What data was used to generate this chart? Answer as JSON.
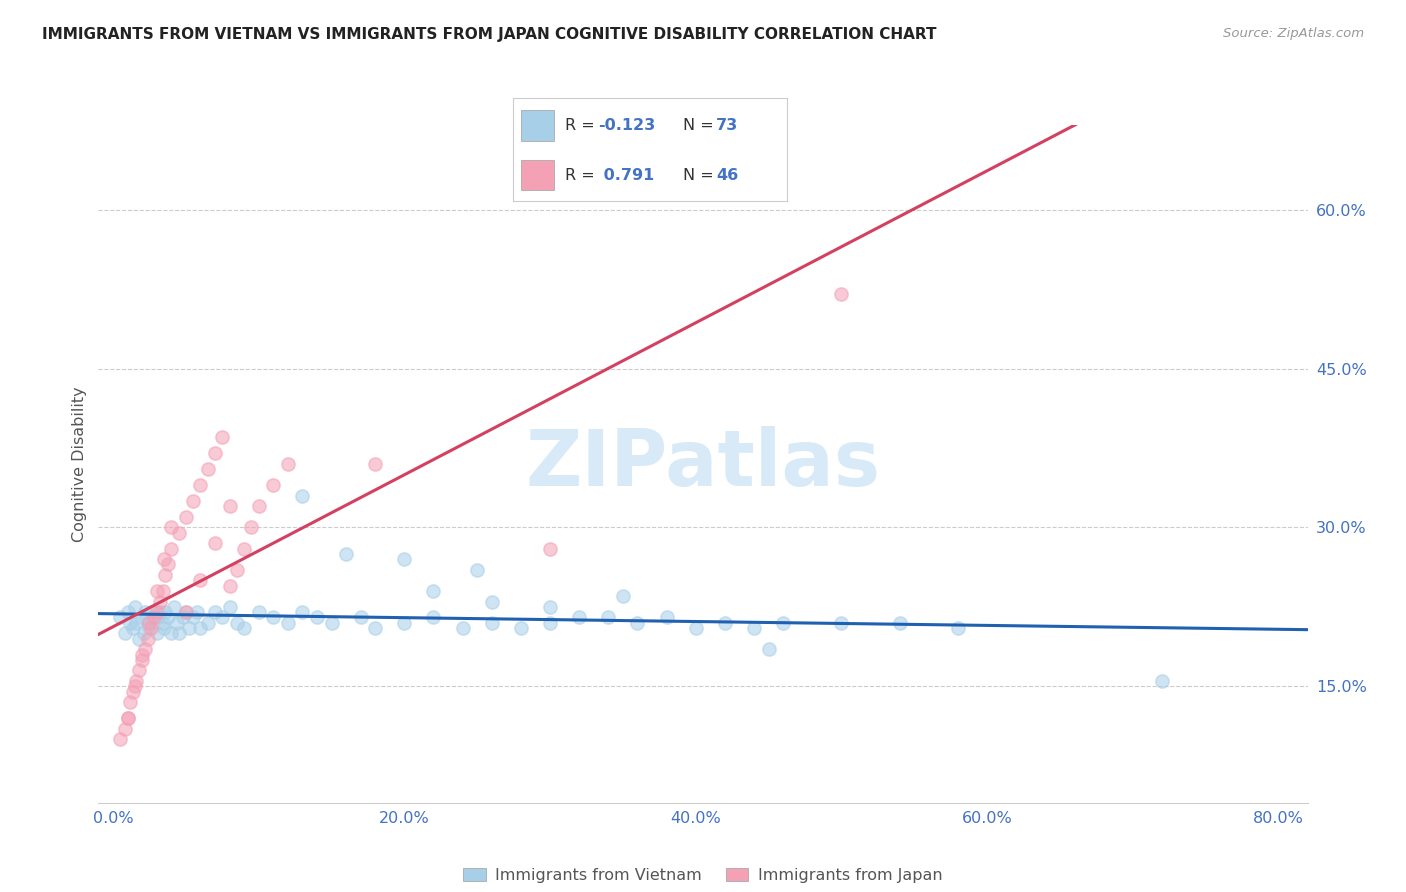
{
  "title": "IMMIGRANTS FROM VIETNAM VS IMMIGRANTS FROM JAPAN COGNITIVE DISABILITY CORRELATION CHART",
  "source": "Source: ZipAtlas.com",
  "ylabel": "Cognitive Disability",
  "x_tick_labels": [
    "0.0%",
    "20.0%",
    "40.0%",
    "60.0%",
    "80.0%"
  ],
  "x_tick_vals": [
    0.0,
    20.0,
    40.0,
    60.0,
    80.0
  ],
  "y_tick_labels": [
    "15.0%",
    "30.0%",
    "45.0%",
    "60.0%"
  ],
  "y_tick_vals": [
    15.0,
    30.0,
    45.0,
    60.0
  ],
  "xlim": [
    -1.0,
    82.0
  ],
  "ylim": [
    4.0,
    68.0
  ],
  "legend_vietnam": "Immigrants from Vietnam",
  "legend_japan": "Immigrants from Japan",
  "r_vietnam": "-0.123",
  "n_vietnam": "73",
  "r_japan": "0.791",
  "n_japan": "46",
  "vietnam_scatter_color": "#a8cfe8",
  "japan_scatter_color": "#f4a0b5",
  "trend_vietnam_color": "#2060b0",
  "trend_japan_color": "#d44060",
  "watermark_color": "#d8eaf8",
  "vietnam_x": [
    0.5,
    0.8,
    1.0,
    1.2,
    1.4,
    1.5,
    1.6,
    1.8,
    2.0,
    2.1,
    2.2,
    2.4,
    2.5,
    2.6,
    2.8,
    3.0,
    3.1,
    3.2,
    3.4,
    3.5,
    3.6,
    3.8,
    4.0,
    4.2,
    4.4,
    4.5,
    4.8,
    5.0,
    5.2,
    5.5,
    5.8,
    6.0,
    6.5,
    7.0,
    7.5,
    8.0,
    8.5,
    9.0,
    10.0,
    11.0,
    12.0,
    13.0,
    14.0,
    15.0,
    17.0,
    18.0,
    20.0,
    22.0,
    24.0,
    26.0,
    28.0,
    30.0,
    32.0,
    34.0,
    36.0,
    38.0,
    40.0,
    42.0,
    44.0,
    46.0,
    50.0,
    54.0,
    58.0,
    72.0,
    22.0,
    26.0,
    30.0,
    35.0,
    13.0,
    16.0,
    20.0,
    25.0,
    45.0
  ],
  "vietnam_y": [
    21.5,
    20.0,
    22.0,
    21.0,
    20.5,
    22.5,
    21.0,
    19.5,
    21.5,
    20.0,
    22.0,
    21.0,
    20.5,
    22.0,
    21.5,
    20.0,
    21.5,
    22.0,
    21.0,
    20.5,
    22.0,
    21.5,
    20.0,
    22.5,
    21.0,
    20.0,
    21.5,
    22.0,
    20.5,
    21.5,
    22.0,
    20.5,
    21.0,
    22.0,
    21.5,
    22.5,
    21.0,
    20.5,
    22.0,
    21.5,
    21.0,
    22.0,
    21.5,
    21.0,
    21.5,
    20.5,
    21.0,
    21.5,
    20.5,
    21.0,
    20.5,
    21.0,
    21.5,
    21.5,
    21.0,
    21.5,
    20.5,
    21.0,
    20.5,
    21.0,
    21.0,
    21.0,
    20.5,
    15.5,
    24.0,
    23.0,
    22.5,
    23.5,
    33.0,
    27.5,
    27.0,
    26.0,
    18.5
  ],
  "japan_x": [
    0.5,
    0.8,
    1.0,
    1.2,
    1.4,
    1.6,
    1.8,
    2.0,
    2.2,
    2.4,
    2.6,
    2.8,
    3.0,
    3.2,
    3.4,
    3.6,
    3.8,
    4.0,
    4.5,
    5.0,
    5.5,
    6.0,
    6.5,
    7.0,
    7.5,
    8.0,
    8.5,
    9.0,
    9.5,
    10.0,
    11.0,
    12.0,
    1.0,
    1.5,
    2.0,
    2.5,
    3.0,
    3.5,
    4.0,
    5.0,
    6.0,
    7.0,
    8.0,
    30.0,
    18.0,
    50.0
  ],
  "japan_y": [
    10.0,
    11.0,
    12.0,
    13.5,
    14.5,
    15.5,
    16.5,
    17.5,
    18.5,
    19.5,
    20.5,
    21.5,
    22.0,
    23.0,
    24.0,
    25.5,
    26.5,
    28.0,
    29.5,
    31.0,
    32.5,
    34.0,
    35.5,
    37.0,
    38.5,
    24.5,
    26.0,
    28.0,
    30.0,
    32.0,
    34.0,
    36.0,
    12.0,
    15.0,
    18.0,
    21.0,
    24.0,
    27.0,
    30.0,
    22.0,
    25.0,
    28.5,
    32.0,
    28.0,
    36.0,
    52.0
  ]
}
